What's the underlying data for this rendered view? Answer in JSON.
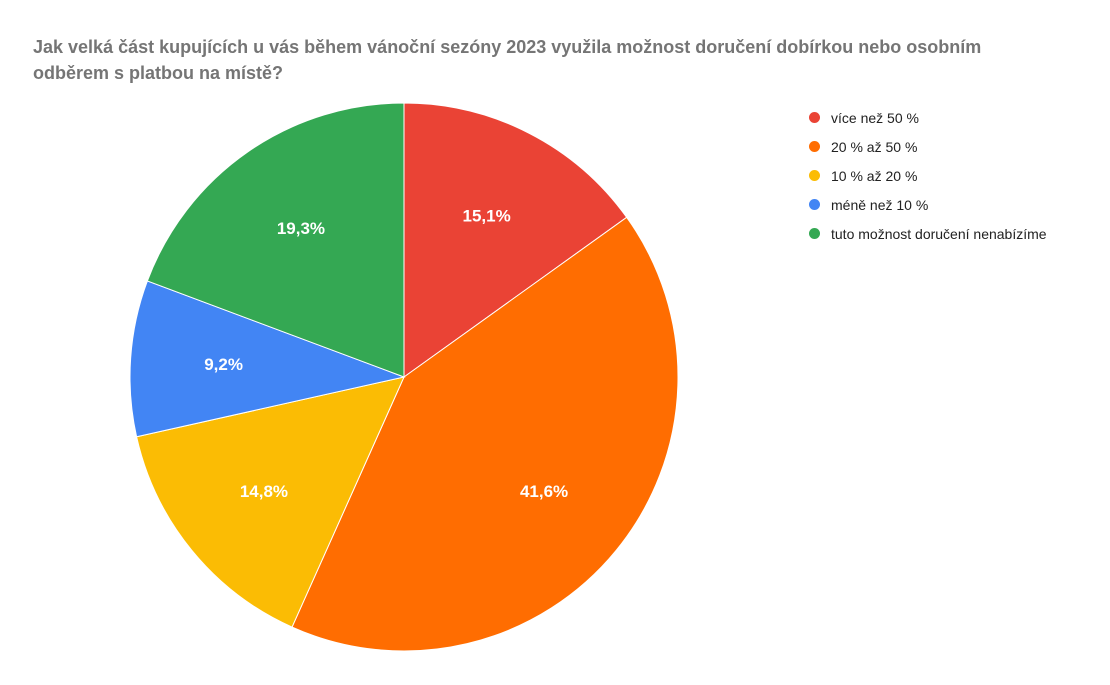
{
  "chart_data": {
    "type": "pie",
    "title": "Jak velká část kupujících u vás během vánoční sezóny 2023 využila možnost doručení dobírkou nebo osobním odběrem s platbou na místě?",
    "categories": [
      "více než 50 %",
      "20 % až 50 %",
      "10 % až 20 %",
      "méně než 10 %",
      "tuto možnost doručení nenabízíme"
    ],
    "values": [
      15.1,
      41.6,
      14.8,
      9.2,
      19.3
    ],
    "labels": [
      "15,1%",
      "41,6%",
      "14,8%",
      "9,2%",
      "19,3%"
    ],
    "colors": [
      "#ea4335",
      "#ff6d01",
      "#fbbc04",
      "#4285f4",
      "#34a853"
    ],
    "start_angle": "12 o'clock",
    "direction": "clockwise",
    "legend_position": "right"
  }
}
